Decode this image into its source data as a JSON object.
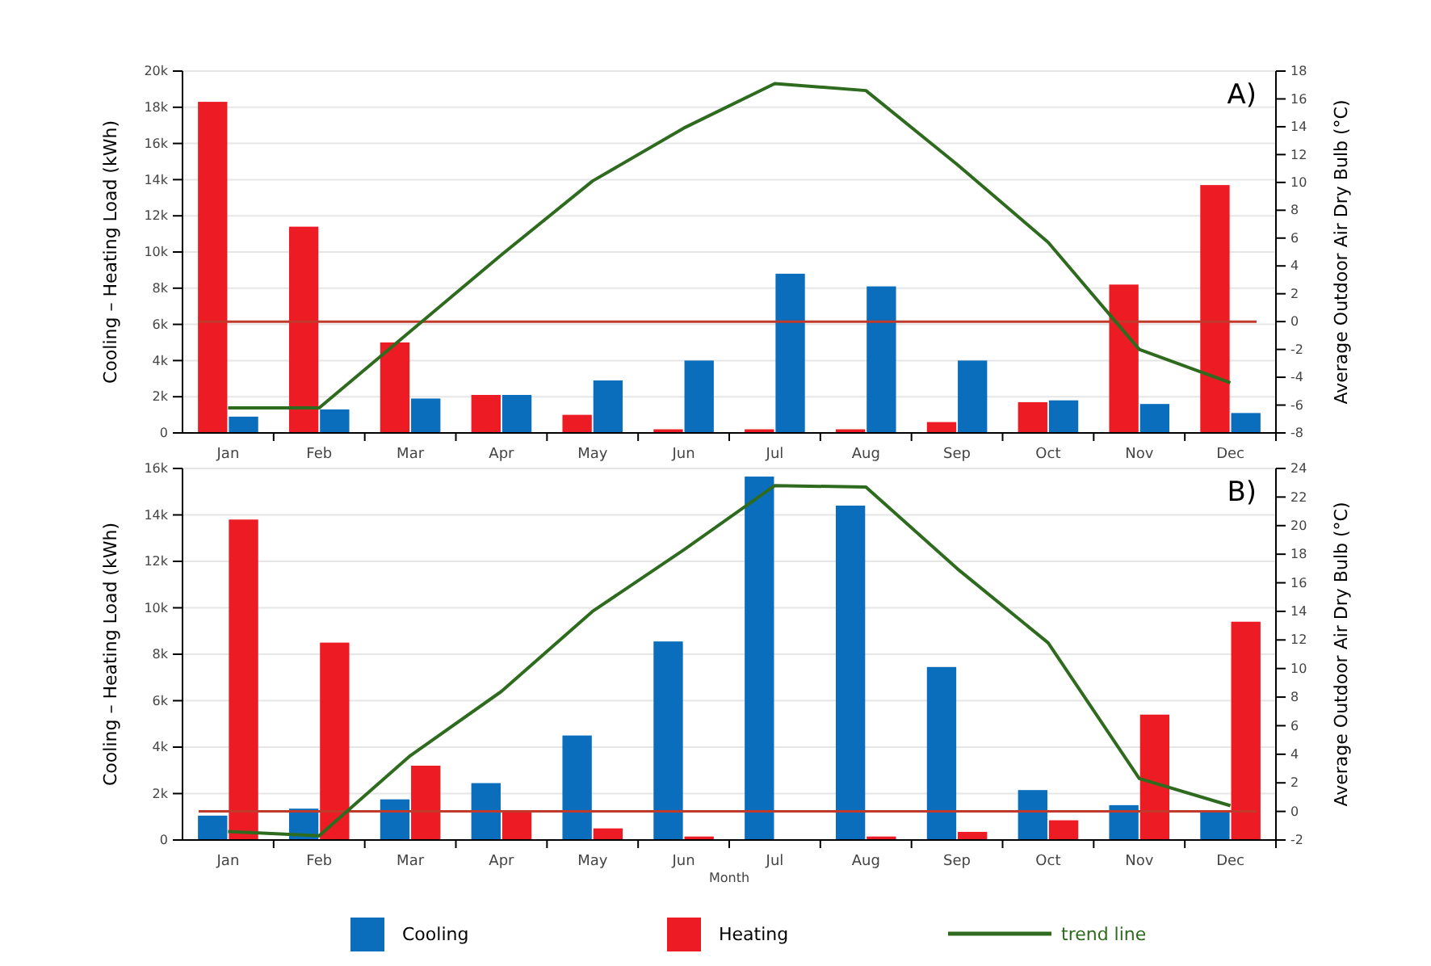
{
  "chart_data": [
    {
      "type": "bar",
      "ylabel": "Cooling – Heating Load (kWh)",
      "y2label": "Average Outdoor Air Dry Bulb (°C)",
      "categories": [
        "Jan",
        "Feb",
        "Mar",
        "Apr",
        "May",
        "Jun",
        "Jul",
        "Aug",
        "Sep",
        "Oct",
        "Nov",
        "Dec"
      ],
      "series": [
        {
          "color": "#ed1c24",
          "values": [
            18300,
            11400,
            5000,
            2100,
            1000,
            200,
            200,
            200,
            600,
            1700,
            8200,
            13700
          ]
        },
        {
          "color": "#0a6ebd",
          "values": [
            900,
            1300,
            1900,
            2100,
            2900,
            4000,
            8800,
            8100,
            4000,
            1800,
            1600,
            1100
          ]
        },
        {
          "type": "line",
          "axis": "y2",
          "color": "#2e6b1e",
          "values": [
            -6.2,
            -6.2,
            -0.7,
            4.8,
            10.1,
            13.9,
            17.1,
            16.6,
            11.3,
            5.7,
            -2,
            -4.4
          ]
        }
      ],
      "ylim": [
        0,
        20000
      ],
      "yticks": [
        0,
        {
          "value": 2000,
          "label": "2k"
        },
        {
          "value": 4000,
          "label": "4k"
        },
        {
          "value": 6000,
          "label": "6k"
        },
        {
          "value": 8000,
          "label": "8k"
        },
        {
          "value": 10000,
          "label": "10k"
        },
        {
          "value": 12000,
          "label": "12k"
        },
        {
          "value": 14000,
          "label": "14k"
        },
        {
          "value": 16000,
          "label": "16k"
        },
        {
          "value": 18000,
          "label": "18k"
        },
        {
          "value": 20000,
          "label": "20k"
        }
      ],
      "y2lim": [
        -8,
        18
      ],
      "y2ticks": [
        -8,
        -6,
        -4,
        -2,
        0,
        2,
        4,
        6,
        8,
        10,
        12,
        14,
        16,
        18
      ],
      "ref_lines": [
        {
          "axis": "y2",
          "value": 0,
          "color": "#c0392b"
        }
      ],
      "annotations": [
        "A)"
      ],
      "grid": "y",
      "legend": false
    },
    {
      "type": "bar",
      "xlabel": "Month",
      "ylabel": "Cooling – Heating Load (kWh)",
      "y2label": "Average Outdoor Air Dry Bulb (°C)",
      "categories": [
        "Jan",
        "Feb",
        "Mar",
        "Apr",
        "May",
        "Jun",
        "Jul",
        "Aug",
        "Sep",
        "Oct",
        "Nov",
        "Dec"
      ],
      "series": [
        {
          "name": "Cooling",
          "color": "#0a6ebd",
          "values": [
            1050,
            1350,
            1750,
            2450,
            4500,
            8550,
            15650,
            14400,
            7450,
            2150,
            1500,
            1250
          ]
        },
        {
          "name": "Heating",
          "color": "#ed1c24",
          "values": [
            13800,
            8500,
            3200,
            1200,
            500,
            150,
            0,
            150,
            350,
            850,
            5400,
            9400
          ]
        },
        {
          "name": "trend line",
          "type": "line",
          "axis": "y2",
          "color": "#2e6b1e",
          "values": [
            -1.4,
            -1.7,
            3.9,
            8.4,
            14,
            18.3,
            22.8,
            22.7,
            17,
            11.8,
            2.3,
            0.4
          ]
        }
      ],
      "ylim": [
        0,
        16000
      ],
      "yticks": [
        0,
        {
          "value": 2000,
          "label": "2k"
        },
        {
          "value": 4000,
          "label": "4k"
        },
        {
          "value": 6000,
          "label": "6k"
        },
        {
          "value": 8000,
          "label": "8k"
        },
        {
          "value": 10000,
          "label": "10k"
        },
        {
          "value": 12000,
          "label": "12k"
        },
        {
          "value": 14000,
          "label": "14k"
        },
        {
          "value": 16000,
          "label": "16k"
        }
      ],
      "y2lim": [
        -2,
        24
      ],
      "y2ticks": [
        -2,
        0,
        2,
        4,
        6,
        8,
        10,
        12,
        14,
        16,
        18,
        20,
        22,
        24
      ],
      "ref_lines": [
        {
          "axis": "y2",
          "value": 0,
          "color": "#c0392b"
        }
      ],
      "annotations": [
        "B)"
      ],
      "grid": "y",
      "legend": "bottom"
    }
  ]
}
